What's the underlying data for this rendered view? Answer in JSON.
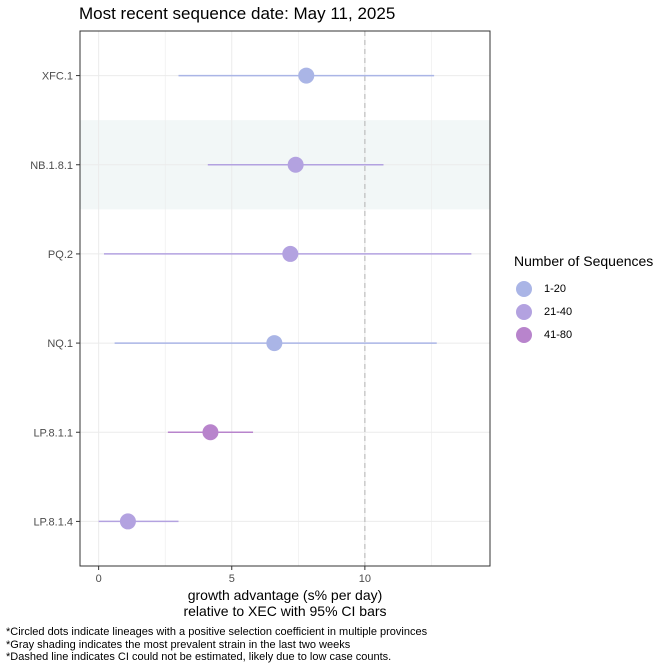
{
  "chart_data": {
    "type": "scatter",
    "title": "Most recent sequence date: May 11, 2025",
    "xlabel_line1": "growth advantage (s% per day)",
    "xlabel_line2": "relative to  XEC  with 95% CI bars",
    "xlim": [
      -0.7,
      14.7
    ],
    "x_ticks": [
      {
        "value": 0,
        "label": "0"
      },
      {
        "value": 5,
        "label": "5"
      },
      {
        "value": 10,
        "label": "10"
      }
    ],
    "reference_line": 10,
    "categories": [
      "XFC.1",
      "NB.1.8.1",
      "PQ.2",
      "NQ.1",
      "LP.8.1.1",
      "LP.8.1.4"
    ],
    "points": [
      {
        "lineage": "XFC.1",
        "x": 7.8,
        "ci_low": 3.0,
        "ci_high": 12.6,
        "seq_group": "1-20"
      },
      {
        "lineage": "NB.1.8.1",
        "x": 7.4,
        "ci_low": 4.1,
        "ci_high": 10.7,
        "seq_group": "21-40"
      },
      {
        "lineage": "PQ.2",
        "x": 7.2,
        "ci_low": 0.2,
        "ci_high": 14.0,
        "seq_group": "21-40"
      },
      {
        "lineage": "NQ.1",
        "x": 6.6,
        "ci_low": 0.6,
        "ci_high": 12.7,
        "seq_group": "1-20"
      },
      {
        "lineage": "LP.8.1.1",
        "x": 4.2,
        "ci_low": 2.6,
        "ci_high": 5.8,
        "seq_group": "41-80"
      },
      {
        "lineage": "LP.8.1.4",
        "x": 1.1,
        "ci_low": 0.0,
        "ci_high": 3.0,
        "seq_group": "21-40"
      }
    ],
    "highlighted_category": "NB.1.8.1",
    "legend": {
      "title": "Number of Sequences",
      "items": [
        {
          "label": "1-20",
          "color": "#aab5e6"
        },
        {
          "label": "21-40",
          "color": "#b3a2e0"
        },
        {
          "label": "41-80",
          "color": "#b884cc"
        }
      ]
    },
    "colors": {
      "highlight_band": "#f2f7f7",
      "reference_line": "#bdbdbd",
      "grid": "#ebebeb"
    }
  },
  "footnotes": [
    "*Circled dots indicate lineages with a positive selection coefficient in multiple provinces",
    "*Gray shading indicates the most prevalent strain in the last two weeks",
    "*Dashed line indicates CI could not be estimated, likely due to low case counts."
  ]
}
